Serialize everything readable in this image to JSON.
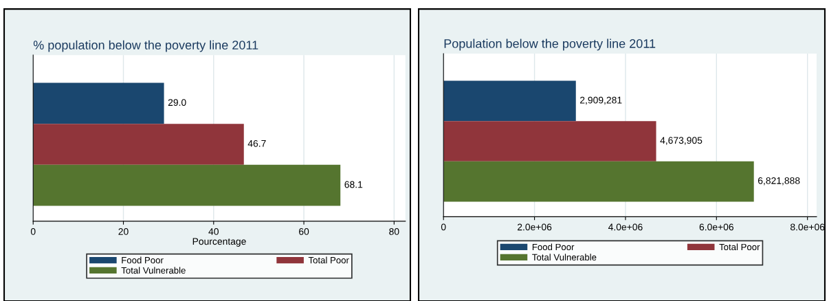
{
  "chart_data": [
    {
      "type": "bar",
      "orientation": "horizontal",
      "title": "% population below the poverty line 2011",
      "xlabel": "Pourcentage",
      "categories": [
        null
      ],
      "xlim": [
        0,
        82.5
      ],
      "xticks": [
        0,
        20,
        40,
        60,
        80
      ],
      "grid": "x",
      "legend": "bottom",
      "tick_labels": "x",
      "series": [
        {
          "name": "Food Poor",
          "color": "#1a476f",
          "values": [
            29.0
          ],
          "value_labels": [
            "29.0"
          ]
        },
        {
          "name": "Total Poor",
          "color": "#90353b",
          "values": [
            46.7
          ],
          "value_labels": [
            "46.7"
          ]
        },
        {
          "name": "Total Vulnerable",
          "color": "#55752f",
          "values": [
            68.1
          ],
          "value_labels": [
            "68.1"
          ]
        }
      ]
    },
    {
      "type": "bar",
      "orientation": "horizontal",
      "title": "Population below the poverty line 2011",
      "categories": [
        null
      ],
      "xlim": [
        0,
        8200000
      ],
      "xticks": [
        0,
        {
          "value": 2000000,
          "label": "2.0e+06"
        },
        {
          "value": 4000000,
          "label": "4.0e+06"
        },
        {
          "value": 6000000,
          "label": "6.0e+06"
        },
        {
          "value": 8000000,
          "label": "8.0e+06"
        }
      ],
      "grid": "x",
      "legend": "bottom",
      "tick_labels": "x",
      "series": [
        {
          "name": "Food Poor",
          "color": "#1a476f",
          "values": [
            2909281
          ],
          "value_labels": [
            "2,909,281"
          ]
        },
        {
          "name": "Total Poor",
          "color": "#90353b",
          "values": [
            4673905
          ],
          "value_labels": [
            "4,673,905"
          ]
        },
        {
          "name": "Total Vulnerable",
          "color": "#55752f",
          "values": [
            6821888
          ],
          "value_labels": [
            "6,821,888"
          ]
        }
      ]
    }
  ]
}
